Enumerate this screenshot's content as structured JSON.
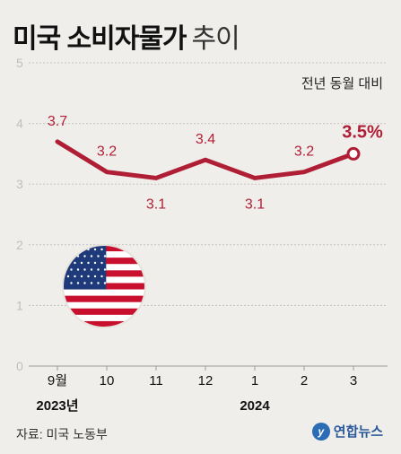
{
  "title": {
    "main": "미국 소비자물가",
    "sub": "추이"
  },
  "unit_label": "전년 동월 대비",
  "source": "자료: 미국 노동부",
  "logo": {
    "mark": "y",
    "text": "연합뉴스",
    "icon": "yonhap-logo-icon"
  },
  "flag_icon": "us-flag-icon",
  "colors": {
    "line": "#b01e35",
    "grid": "#c4c4c4",
    "axis_text": "#bfbfbf",
    "background": "#f0eeeb"
  },
  "chart_data": {
    "type": "line",
    "categories": [
      "9월",
      "10",
      "11",
      "12",
      "1",
      "2",
      "3"
    ],
    "year_labels": [
      {
        "text": "2023년",
        "under": 0
      },
      {
        "text": "2024",
        "under": 4
      }
    ],
    "series": [
      {
        "values": [
          3.7,
          3.2,
          3.1,
          3.4,
          3.1,
          3.2,
          3.5
        ]
      }
    ],
    "data_labels": [
      "3.7",
      "3.2",
      "3.1",
      "3.4",
      "3.1",
      "3.2",
      "3.5%"
    ],
    "ylim": [
      0,
      5
    ],
    "yticks": [
      0,
      1,
      2,
      3,
      4,
      5
    ],
    "grid": true,
    "last_point_highlight": true
  }
}
